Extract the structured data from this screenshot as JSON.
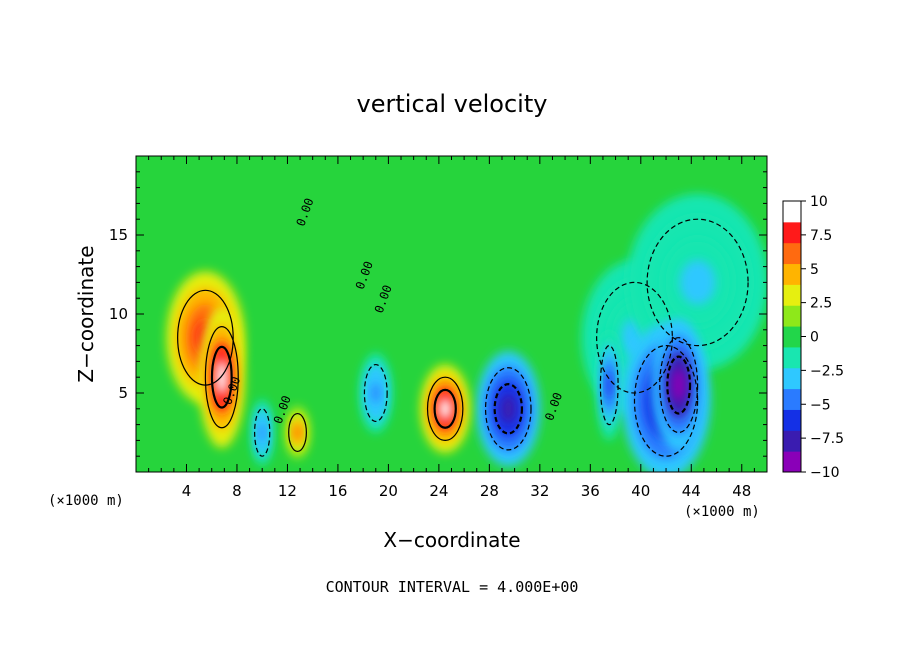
{
  "chart_data": {
    "type": "heatmap",
    "title": "vertical velocity",
    "xlabel": "X−coordinate",
    "ylabel": "Z−coordinate",
    "x_unit_left": "(×1000 m)",
    "x_unit_right": "(×1000 m)",
    "footer": "CONTOUR INTERVAL = 4.000E+00",
    "xlim": [
      0,
      50
    ],
    "ylim": [
      0,
      20
    ],
    "x_ticks": [
      4,
      8,
      12,
      16,
      20,
      24,
      28,
      32,
      36,
      40,
      44,
      48
    ],
    "y_ticks": [
      5,
      10,
      15
    ],
    "colorbar": {
      "min": -10,
      "max": 10,
      "tick_values": [
        10,
        7.5,
        5,
        2.5,
        0,
        -2.5,
        -5,
        -7.5,
        -10
      ],
      "tick_labels": [
        "10",
        "7.5",
        "5",
        "2.5",
        "0",
        "−2.5",
        "−5",
        "−7.5",
        "−10"
      ],
      "colors": [
        "#8a00b8",
        "#3a1cb0",
        "#1430e6",
        "#2a7bff",
        "#2fc8ff",
        "#19e6b0",
        "#22d64a",
        "#8ee81a",
        "#e6ef10",
        "#ffb400",
        "#ff6a10",
        "#ff1a1a",
        "#ffffff"
      ]
    },
    "contour_labels": [
      "0.00",
      "0.00",
      "0.00",
      "0.00",
      "0.00",
      "0.00"
    ],
    "features": [
      {
        "x": 6.8,
        "z": 6.0,
        "value": 10,
        "sx": 1.3,
        "sz": 3.2
      },
      {
        "x": 5.5,
        "z": 8.5,
        "value": 7.5,
        "sx": 2.2,
        "sz": 3.0
      },
      {
        "x": 24.5,
        "z": 4.0,
        "value": 10,
        "sx": 1.4,
        "sz": 2.0
      },
      {
        "x": 12.8,
        "z": 2.5,
        "value": 7,
        "sx": 0.7,
        "sz": 1.2
      },
      {
        "x": 29.5,
        "z": 4.0,
        "value": -8.5,
        "sx": 1.8,
        "sz": 2.6
      },
      {
        "x": 43.0,
        "z": 5.5,
        "value": -10,
        "sx": 1.5,
        "sz": 3.0
      },
      {
        "x": 42.0,
        "z": 4.5,
        "value": -7.5,
        "sx": 2.5,
        "sz": 3.5
      },
      {
        "x": 37.5,
        "z": 5.5,
        "value": -6.5,
        "sx": 0.7,
        "sz": 2.5
      },
      {
        "x": 39.5,
        "z": 8.5,
        "value": -3,
        "sx": 3.0,
        "sz": 3.5
      },
      {
        "x": 44.5,
        "z": 12.0,
        "value": -3,
        "sx": 4.0,
        "sz": 4.0
      },
      {
        "x": 19.0,
        "z": 5.0,
        "value": -5,
        "sx": 0.9,
        "sz": 1.8
      },
      {
        "x": 10.0,
        "z": 2.5,
        "value": -5,
        "sx": 0.6,
        "sz": 1.5
      }
    ]
  }
}
